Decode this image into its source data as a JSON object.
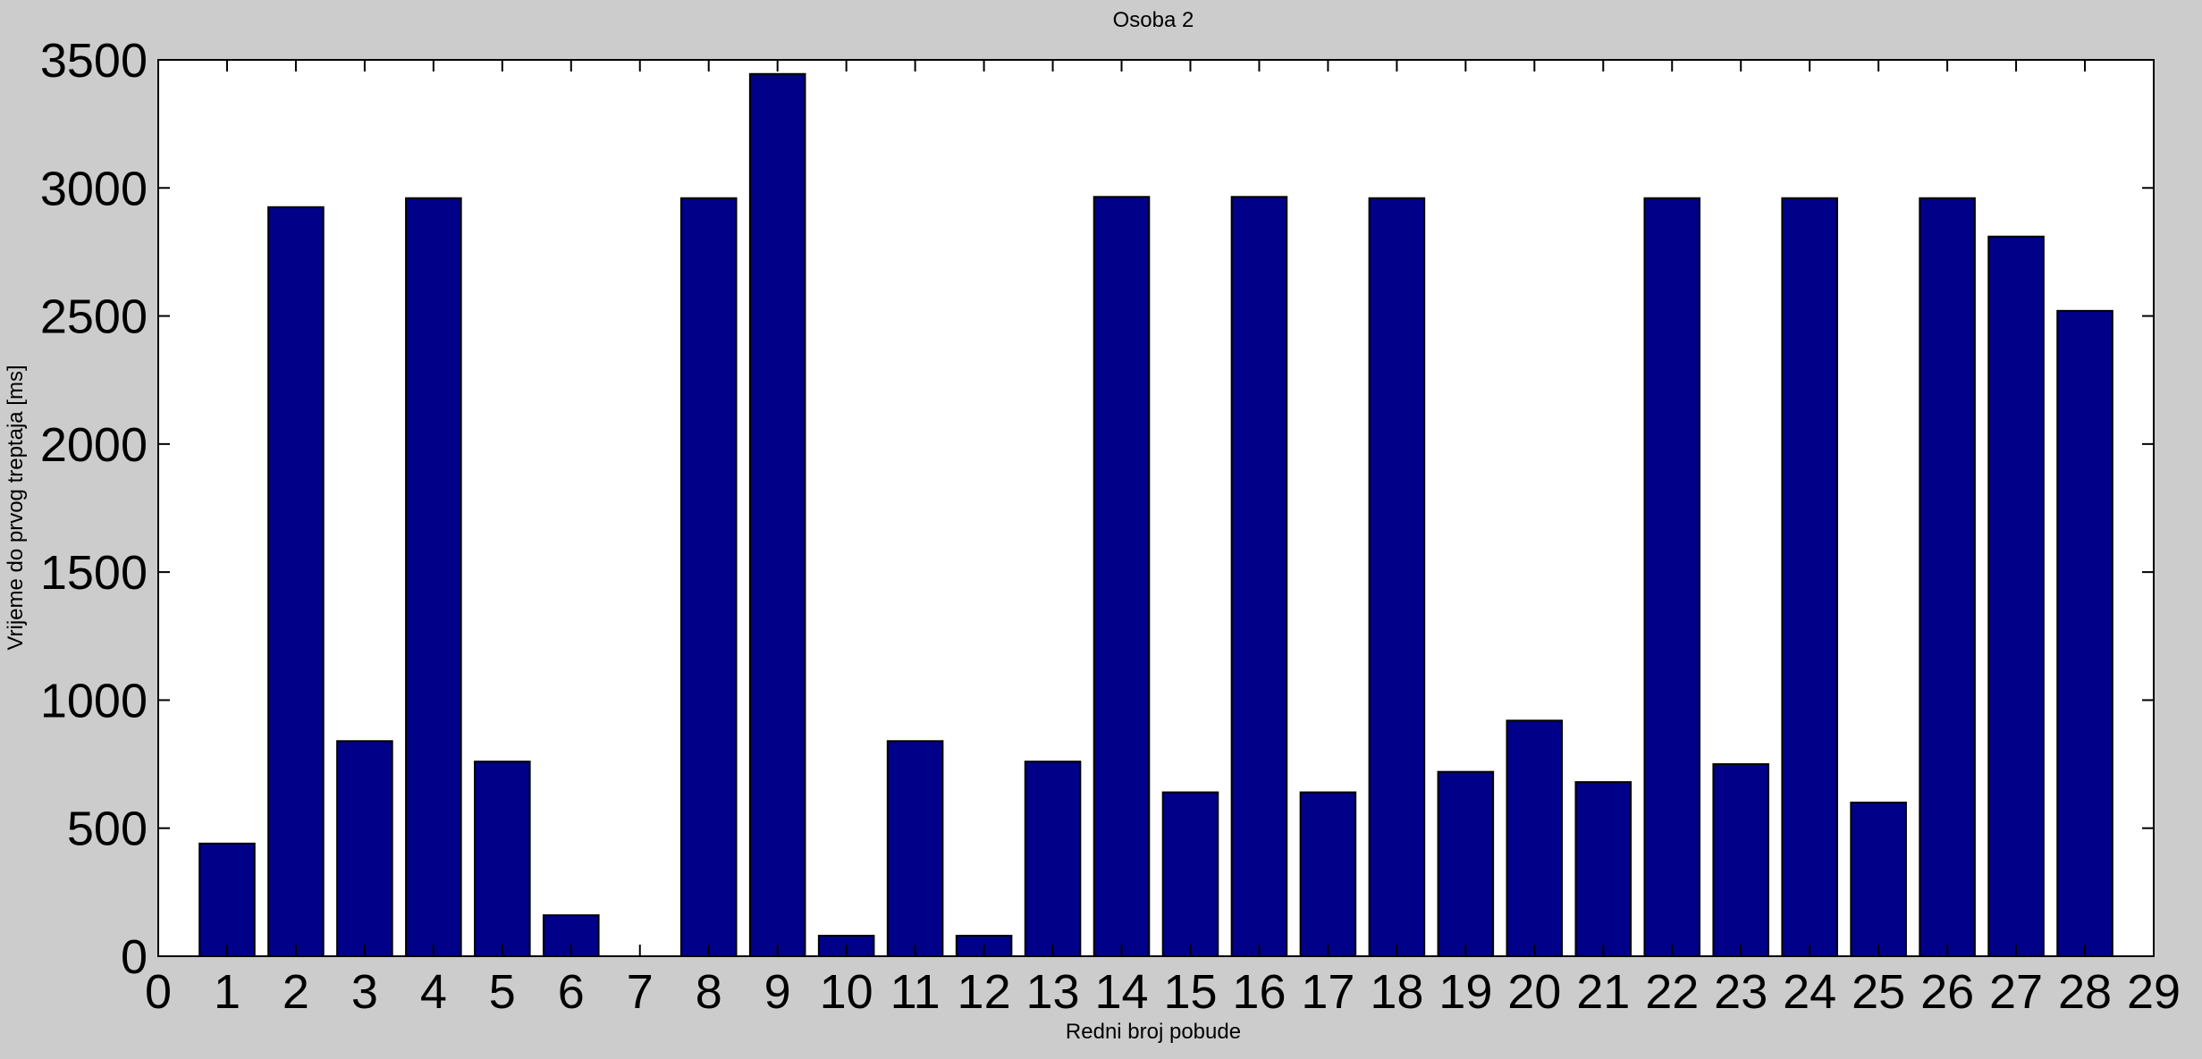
{
  "chart_data": {
    "type": "bar",
    "title": "Osoba 2",
    "xlabel": "Redni broj pobude",
    "ylabel": "Vrijeme do prvog treptaja [ms]",
    "xlim": [
      0,
      29
    ],
    "ylim": [
      0,
      3500
    ],
    "xticks": [
      "0",
      "1",
      "2",
      "3",
      "4",
      "5",
      "6",
      "7",
      "8",
      "9",
      "10",
      "11",
      "12",
      "13",
      "14",
      "15",
      "16",
      "17",
      "18",
      "19",
      "20",
      "21",
      "22",
      "23",
      "24",
      "25",
      "26",
      "27",
      "28",
      "29"
    ],
    "yticks": [
      "0",
      "500",
      "1000",
      "1500",
      "2000",
      "2500",
      "3000",
      "3500"
    ],
    "categories": [
      1,
      2,
      3,
      4,
      5,
      6,
      7,
      8,
      9,
      10,
      11,
      12,
      13,
      14,
      15,
      16,
      17,
      18,
      19,
      20,
      21,
      22,
      23,
      24,
      25,
      26,
      27,
      28
    ],
    "values": [
      440,
      2925,
      840,
      2960,
      760,
      160,
      0,
      2960,
      3445,
      80,
      840,
      80,
      760,
      2965,
      640,
      2965,
      640,
      2960,
      720,
      920,
      680,
      2960,
      750,
      2960,
      600,
      2960,
      2810,
      2520
    ],
    "bar_color": "#000088",
    "background": "#cccccc",
    "plot_background": "#ffffff",
    "grid": false,
    "legend": "none"
  }
}
